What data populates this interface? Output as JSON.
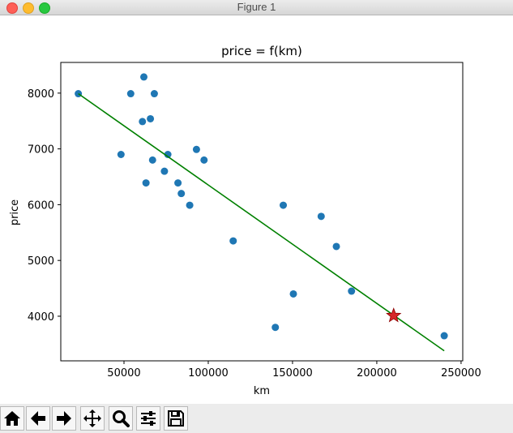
{
  "window": {
    "title": "Figure 1"
  },
  "toolbar": {
    "buttons": [
      {
        "name": "home-button",
        "icon": "home-icon"
      },
      {
        "name": "back-button",
        "icon": "arrow-left-icon"
      },
      {
        "name": "forward-button",
        "icon": "arrow-right-icon"
      },
      {
        "name": "pan-button",
        "icon": "move-icon"
      },
      {
        "name": "zoom-button",
        "icon": "magnifier-icon"
      },
      {
        "name": "configure-subplots-button",
        "icon": "sliders-icon"
      },
      {
        "name": "save-button",
        "icon": "floppy-disk-icon"
      }
    ]
  },
  "chart_data": {
    "type": "scatter",
    "title": "price = f(km)",
    "xlabel": "km",
    "ylabel": "price",
    "xlim": [
      12500,
      251000
    ],
    "ylim": [
      3200,
      8550
    ],
    "xticks": [
      50000,
      100000,
      150000,
      200000,
      250000
    ],
    "yticks": [
      4000,
      5000,
      6000,
      7000,
      8000
    ],
    "grid": false,
    "colors": {
      "points": "#1f77b4",
      "line": "#008000",
      "star": "#d62728"
    },
    "points": [
      {
        "x": 22899,
        "y": 7990
      },
      {
        "x": 48235,
        "y": 6900
      },
      {
        "x": 54000,
        "y": 7990
      },
      {
        "x": 60949,
        "y": 7490
      },
      {
        "x": 61789,
        "y": 8290
      },
      {
        "x": 63060,
        "y": 6390
      },
      {
        "x": 65674,
        "y": 7540
      },
      {
        "x": 66957,
        "y": 6800
      },
      {
        "x": 68000,
        "y": 7990
      },
      {
        "x": 74000,
        "y": 6600
      },
      {
        "x": 76025,
        "y": 6900
      },
      {
        "x": 82029,
        "y": 6390
      },
      {
        "x": 84000,
        "y": 6200
      },
      {
        "x": 89000,
        "y": 5990
      },
      {
        "x": 93000,
        "y": 6990
      },
      {
        "x": 97500,
        "y": 6800
      },
      {
        "x": 114800,
        "y": 5350
      },
      {
        "x": 139800,
        "y": 3800
      },
      {
        "x": 144500,
        "y": 5990
      },
      {
        "x": 150500,
        "y": 4400
      },
      {
        "x": 167000,
        "y": 5790
      },
      {
        "x": 176000,
        "y": 5250
      },
      {
        "x": 185000,
        "y": 4450
      },
      {
        "x": 240000,
        "y": 3650
      }
    ],
    "fit_line": {
      "x": [
        22899,
        240000
      ],
      "y": [
        7990,
        3380
      ]
    },
    "prediction": {
      "x": 210000,
      "y": 4010
    }
  }
}
